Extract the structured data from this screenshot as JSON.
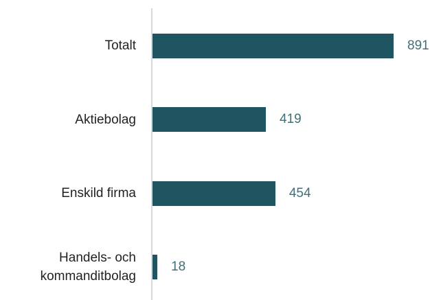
{
  "chart_data": {
    "type": "bar",
    "orientation": "horizontal",
    "categories": [
      "Totalt",
      "Aktiebolag",
      "Enskild firma",
      "Handels- och\nkommanditbolag"
    ],
    "values": [
      891,
      419,
      454,
      18
    ],
    "color": "#1f5560",
    "label_color": "#3f6f77"
  }
}
